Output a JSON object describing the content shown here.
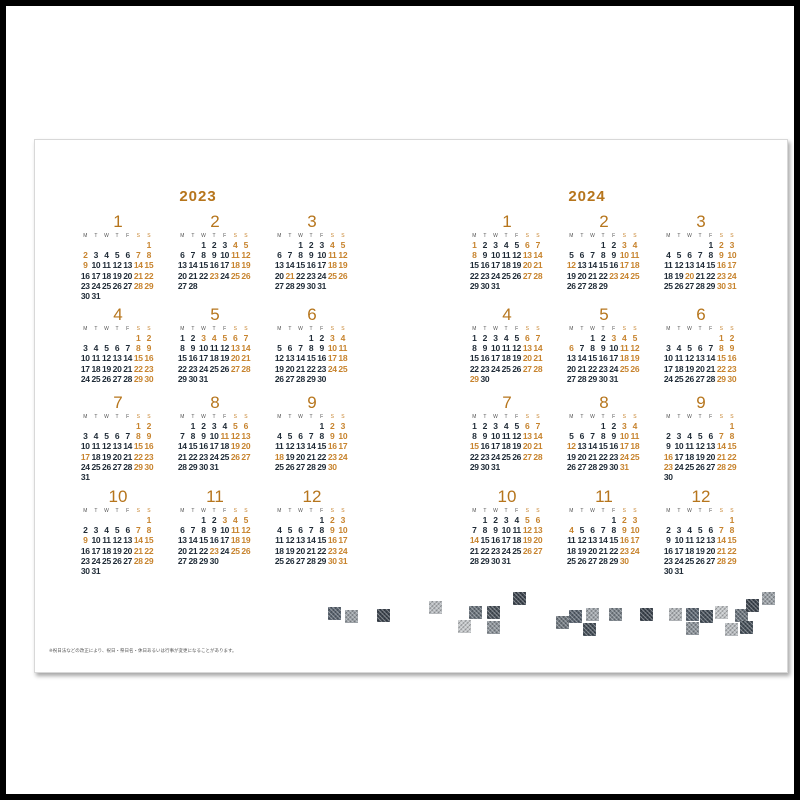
{
  "footnote": "※祝日法などの改正により、祝日・祭日名・休日あるいは行事が変更になることがあります。",
  "dow_labels": [
    "M",
    "T",
    "W",
    "T",
    "F",
    "S",
    "S"
  ],
  "colors": {
    "accent": "#b6751c",
    "holiday": "#c7832d",
    "text": "#1e2a36"
  },
  "years": [
    {
      "label": "2023",
      "months": [
        {
          "num": "1",
          "offset": 6,
          "days": 31,
          "holidays": [
            1,
            2,
            7,
            8,
            9,
            14,
            15,
            21,
            22,
            28,
            29
          ]
        },
        {
          "num": "2",
          "offset": 2,
          "days": 28,
          "holidays": [
            4,
            5,
            11,
            12,
            18,
            19,
            23,
            25,
            26
          ]
        },
        {
          "num": "3",
          "offset": 2,
          "days": 31,
          "holidays": [
            4,
            5,
            11,
            12,
            18,
            19,
            21,
            25,
            26
          ]
        },
        {
          "num": "4",
          "offset": 5,
          "days": 30,
          "holidays": [
            1,
            2,
            8,
            9,
            15,
            16,
            22,
            23,
            29,
            30
          ]
        },
        {
          "num": "5",
          "offset": 0,
          "days": 31,
          "holidays": [
            3,
            4,
            5,
            6,
            7,
            13,
            14,
            20,
            21,
            27,
            28
          ]
        },
        {
          "num": "6",
          "offset": 3,
          "days": 30,
          "holidays": [
            3,
            4,
            10,
            11,
            17,
            18,
            24,
            25
          ]
        },
        {
          "num": "7",
          "offset": 5,
          "days": 31,
          "holidays": [
            1,
            2,
            8,
            9,
            15,
            16,
            17,
            22,
            23,
            29,
            30
          ]
        },
        {
          "num": "8",
          "offset": 1,
          "days": 31,
          "holidays": [
            5,
            6,
            11,
            12,
            13,
            19,
            20,
            26,
            27
          ]
        },
        {
          "num": "9",
          "offset": 4,
          "days": 30,
          "holidays": [
            2,
            3,
            9,
            10,
            16,
            17,
            18,
            23,
            24,
            30
          ]
        },
        {
          "num": "10",
          "offset": 6,
          "days": 31,
          "holidays": [
            1,
            7,
            8,
            9,
            14,
            15,
            21,
            22,
            28,
            29
          ]
        },
        {
          "num": "11",
          "offset": 2,
          "days": 30,
          "holidays": [
            3,
            4,
            5,
            11,
            12,
            18,
            19,
            23,
            25,
            26
          ]
        },
        {
          "num": "12",
          "offset": 4,
          "days": 31,
          "holidays": [
            2,
            3,
            9,
            10,
            16,
            17,
            23,
            24,
            30,
            31
          ]
        }
      ]
    },
    {
      "label": "2024",
      "months": [
        {
          "num": "1",
          "offset": 0,
          "days": 31,
          "holidays": [
            1,
            6,
            7,
            8,
            13,
            14,
            20,
            21,
            27,
            28
          ]
        },
        {
          "num": "2",
          "offset": 3,
          "days": 29,
          "holidays": [
            3,
            4,
            10,
            11,
            12,
            17,
            18,
            23,
            24,
            25
          ]
        },
        {
          "num": "3",
          "offset": 4,
          "days": 31,
          "holidays": [
            2,
            3,
            9,
            10,
            16,
            17,
            20,
            23,
            24,
            30,
            31
          ]
        },
        {
          "num": "4",
          "offset": 0,
          "days": 30,
          "holidays": [
            6,
            7,
            13,
            14,
            20,
            21,
            27,
            28,
            29
          ]
        },
        {
          "num": "5",
          "offset": 2,
          "days": 31,
          "holidays": [
            3,
            4,
            5,
            6,
            11,
            12,
            18,
            19,
            25,
            26
          ]
        },
        {
          "num": "6",
          "offset": 5,
          "days": 30,
          "holidays": [
            1,
            2,
            8,
            9,
            15,
            16,
            22,
            23,
            29,
            30
          ]
        },
        {
          "num": "7",
          "offset": 0,
          "days": 31,
          "holidays": [
            6,
            7,
            13,
            14,
            15,
            20,
            21,
            27,
            28
          ]
        },
        {
          "num": "8",
          "offset": 3,
          "days": 31,
          "holidays": [
            3,
            4,
            10,
            11,
            12,
            17,
            18,
            24,
            25,
            31
          ]
        },
        {
          "num": "9",
          "offset": 6,
          "days": 30,
          "holidays": [
            1,
            7,
            8,
            14,
            15,
            16,
            21,
            22,
            23,
            28,
            29
          ]
        },
        {
          "num": "10",
          "offset": 1,
          "days": 31,
          "holidays": [
            5,
            6,
            12,
            13,
            14,
            19,
            20,
            26,
            27
          ]
        },
        {
          "num": "11",
          "offset": 4,
          "days": 30,
          "holidays": [
            2,
            3,
            4,
            9,
            10,
            16,
            17,
            23,
            24,
            30
          ]
        },
        {
          "num": "12",
          "offset": 6,
          "days": 31,
          "holidays": [
            1,
            7,
            8,
            14,
            15,
            21,
            22,
            28,
            29
          ]
        }
      ]
    }
  ],
  "mosaic_tiles": [
    {
      "c": "#5a6470"
    },
    {
      "c": "#9aa0a6"
    },
    {
      "c": "#3e4650"
    },
    {
      "c": "#b8bcc0"
    },
    {
      "c": "#6a737c"
    },
    {
      "c": "#4a525b"
    },
    {
      "c": "#8c939a"
    },
    {
      "c": "#c4c7ca"
    },
    {
      "c": "#3e4650"
    },
    {
      "c": "#707880"
    },
    {
      "c": "#5a6470"
    },
    {
      "c": "#a0a6ac"
    },
    {
      "c": "#46505a"
    },
    {
      "c": "#7a828a"
    },
    {
      "c": "#3e4650"
    },
    {
      "c": "#b0b4b8"
    },
    {
      "c": "#5a6470"
    },
    {
      "c": "#8c939a"
    },
    {
      "c": "#46505a"
    },
    {
      "c": "#c4c7ca"
    },
    {
      "c": "#6a737c"
    },
    {
      "c": "#3e4650"
    },
    {
      "c": "#9aa0a6"
    },
    {
      "c": "#5a6470"
    },
    {
      "c": "#7a828a"
    },
    {
      "c": "#46505a"
    },
    {
      "c": "#b8bcc0"
    }
  ]
}
